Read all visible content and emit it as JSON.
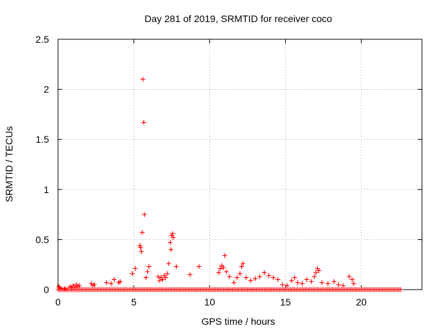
{
  "chart_data": {
    "type": "scatter",
    "title": "Day 281 of 2019, SRMTID for receiver coco",
    "xlabel": "GPS time / hours",
    "ylabel": "SRMTID / TECUs",
    "xlim": [
      0,
      24
    ],
    "ylim": [
      0,
      2.5
    ],
    "xticks": [
      0,
      5,
      10,
      15,
      20
    ],
    "xtick_labels": [
      "0",
      "5",
      "10",
      "15",
      "20"
    ],
    "yticks": [
      0,
      0.5,
      1,
      1.5,
      2,
      2.5
    ],
    "ytick_labels": [
      "0",
      "0.5",
      "1",
      "1.5",
      "2",
      "2.5"
    ],
    "grid": true,
    "marker": "+",
    "series": [
      {
        "name": "SRMTID",
        "color": "#ff0000",
        "x": [
          0.05,
          0.1,
          0.2,
          0.3,
          0.45,
          0.6,
          0.8,
          0.9,
          1.0,
          1.1,
          1.2,
          1.3,
          1.4,
          2.2,
          2.3,
          2.4,
          3.2,
          3.5,
          3.7,
          4.0,
          4.1,
          4.9,
          5.1,
          5.4,
          5.45,
          5.5,
          5.55,
          5.6,
          5.65,
          5.7,
          5.8,
          5.9,
          6.0,
          6.6,
          6.7,
          6.8,
          6.9,
          7.0,
          7.1,
          7.2,
          7.3,
          7.4,
          7.45,
          7.5,
          7.55,
          7.6,
          7.8,
          8.7,
          9.3,
          10.6,
          10.7,
          10.8,
          10.9,
          11.0,
          11.1,
          11.3,
          11.6,
          11.8,
          12.0,
          12.1,
          12.2,
          12.4,
          12.7,
          13.0,
          13.3,
          13.6,
          13.9,
          14.2,
          14.5,
          14.8,
          15.1,
          15.4,
          15.6,
          15.8,
          16.1,
          16.4,
          16.7,
          16.9,
          17.0,
          17.1,
          17.2,
          17.4,
          17.8,
          18.2,
          18.5,
          18.8,
          19.2,
          19.4,
          19.5
        ],
        "y": [
          0.03,
          0.02,
          0.01,
          0.0,
          0.01,
          0.0,
          0.03,
          0.02,
          0.04,
          0.02,
          0.05,
          0.03,
          0.04,
          0.06,
          0.04,
          0.05,
          0.07,
          0.06,
          0.1,
          0.07,
          0.08,
          0.16,
          0.21,
          0.44,
          0.42,
          0.38,
          0.57,
          2.1,
          1.67,
          0.75,
          0.12,
          0.18,
          0.23,
          0.13,
          0.09,
          0.12,
          0.1,
          0.14,
          0.12,
          0.16,
          0.26,
          0.47,
          0.4,
          0.54,
          0.56,
          0.52,
          0.23,
          0.15,
          0.23,
          0.17,
          0.21,
          0.24,
          0.22,
          0.34,
          0.18,
          0.13,
          0.07,
          0.12,
          0.16,
          0.23,
          0.26,
          0.12,
          0.09,
          0.11,
          0.13,
          0.17,
          0.14,
          0.12,
          0.1,
          0.05,
          0.04,
          0.09,
          0.12,
          0.07,
          0.06,
          0.1,
          0.08,
          0.13,
          0.17,
          0.21,
          0.19,
          0.07,
          0.06,
          0.08,
          0.05,
          0.04,
          0.13,
          0.1,
          0.06
        ]
      }
    ],
    "baseline": {
      "name": "near-zero",
      "color": "#ff0000",
      "y_value": 0.0,
      "x_start": 0.0,
      "x_end": 22.6,
      "x_step": 0.1
    }
  }
}
